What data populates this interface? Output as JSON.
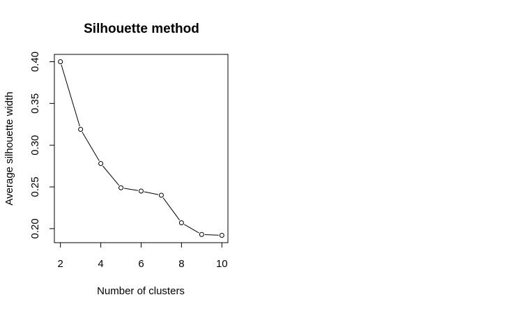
{
  "chart_data": {
    "type": "line",
    "title": "Silhouette method",
    "xlabel": "Number of clusters",
    "ylabel": "Average silhouette width",
    "x": [
      2,
      3,
      4,
      5,
      6,
      7,
      8,
      9,
      10
    ],
    "series": [
      {
        "values": [
          0.4,
          0.319,
          0.278,
          0.249,
          0.245,
          0.24,
          0.207,
          0.193,
          0.192
        ]
      }
    ],
    "xticks": [
      "2",
      "4",
      "6",
      "8",
      "10"
    ],
    "yticks": [
      "0.20",
      "0.25",
      "0.30",
      "0.35",
      "0.40"
    ],
    "xlim": [
      1.7,
      10.3
    ],
    "ylim": [
      0.1832,
      0.4088
    ],
    "grid": false,
    "marker": "open-circle",
    "line_color": "#000000"
  }
}
